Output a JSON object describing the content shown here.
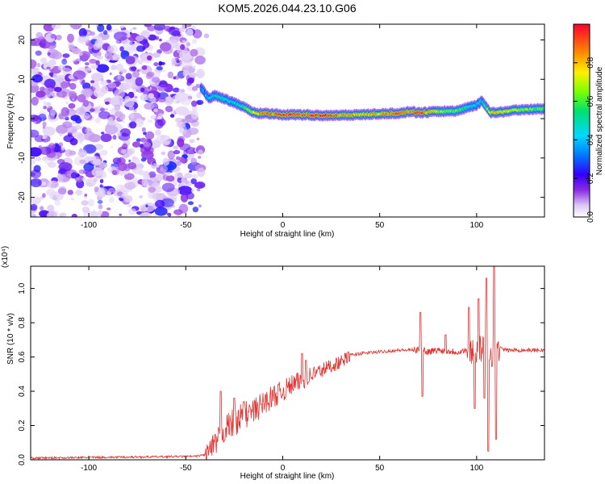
{
  "figure_title": "KOM5.2026.044.23.10.G06",
  "colors": {
    "snr_line": "#e4312f",
    "frame": "#000000"
  },
  "chart_data": [
    {
      "type": "heatmap",
      "title": "KOM5.2026.044.23.10.G06",
      "xlabel": "Height of straight line (km)",
      "ylabel": "Frequency (Hz)",
      "xlim": [
        -130,
        135
      ],
      "ylim": [
        -25,
        24
      ],
      "xticks": [
        -100,
        -50,
        0,
        50,
        100
      ],
      "yticks": [
        -20,
        -10,
        0,
        10,
        20
      ],
      "noise_region_x": [
        -130,
        -42
      ],
      "ridge": {
        "x": [
          -42,
          -38,
          -35,
          -30,
          -25,
          -20,
          -15,
          -10,
          -5,
          0,
          10,
          20,
          30,
          40,
          50,
          60,
          66,
          70,
          80,
          90,
          100,
          103,
          105,
          107,
          110,
          120,
          135
        ],
        "frequency": [
          8,
          5,
          6,
          5,
          4,
          3,
          1.5,
          1.3,
          1.2,
          1.0,
          1.0,
          0.8,
          0.9,
          1.0,
          1.2,
          1.4,
          1.8,
          1.5,
          1.8,
          2.0,
          3.5,
          4.5,
          3,
          1.5,
          1.5,
          2.2,
          2.5
        ],
        "amplitude": [
          0.35,
          0.4,
          0.45,
          0.5,
          0.45,
          0.55,
          0.7,
          0.9,
          0.85,
          0.95,
          0.9,
          0.95,
          0.85,
          0.8,
          0.8,
          0.9,
          0.85,
          0.95,
          0.7,
          0.6,
          0.45,
          0.45,
          0.55,
          0.75,
          0.8,
          0.7,
          0.6
        ]
      },
      "colorbar": {
        "label": "Normalized spectral amplitude",
        "range": [
          0,
          1
        ],
        "ticks": [
          "0.0",
          "0.2",
          "0.4",
          "0.6",
          "0.8"
        ]
      }
    },
    {
      "type": "line",
      "xlabel": "Height of straight line (km)",
      "ylabel": "SNR (10 * v/v)",
      "scale_label": "(x10⁴)",
      "xlim": [
        -130,
        135
      ],
      "ylim": [
        0,
        1.13
      ],
      "xticks": [
        -100,
        -50,
        0,
        50,
        100
      ],
      "yticks": [
        "0.0",
        "0.2",
        "0.4",
        "0.6",
        "0.8",
        "1.0"
      ],
      "series": [
        {
          "name": "SNR",
          "x": [
            -130,
            -45,
            -40,
            -35,
            -30,
            -25,
            -20,
            -15,
            -10,
            -5,
            0,
            5,
            10,
            15,
            20,
            25,
            30,
            35,
            40,
            50,
            60,
            70,
            72,
            74,
            80,
            90,
            95,
            100,
            103,
            106,
            108,
            110,
            115,
            120,
            135
          ],
          "y": [
            0.01,
            0.02,
            0.03,
            0.08,
            0.18,
            0.22,
            0.26,
            0.28,
            0.33,
            0.37,
            0.4,
            0.44,
            0.46,
            0.5,
            0.52,
            0.55,
            0.57,
            0.61,
            0.62,
            0.63,
            0.64,
            0.64,
            0.65,
            0.63,
            0.64,
            0.63,
            0.64,
            0.64,
            0.65,
            0.63,
            0.62,
            0.66,
            0.64,
            0.64,
            0.64
          ],
          "extremes": [
            {
              "x": -32,
              "y": 0.4
            },
            {
              "x": -25,
              "y": 0.36
            },
            {
              "x": -20,
              "y": 0.34
            },
            {
              "x": 10,
              "y": 0.62
            },
            {
              "x": 12,
              "y": 0.58
            },
            {
              "x": 71,
              "y": 0.86
            },
            {
              "x": 72,
              "y": 0.37
            },
            {
              "x": 84,
              "y": 0.73
            },
            {
              "x": 96,
              "y": 0.89
            },
            {
              "x": 99,
              "y": 0.3
            },
            {
              "x": 101,
              "y": 0.94
            },
            {
              "x": 104,
              "y": 0.36
            },
            {
              "x": 105,
              "y": 1.06
            },
            {
              "x": 106,
              "y": 0.05
            },
            {
              "x": 109,
              "y": 1.13
            },
            {
              "x": 110,
              "y": 0.12
            }
          ]
        }
      ]
    }
  ]
}
